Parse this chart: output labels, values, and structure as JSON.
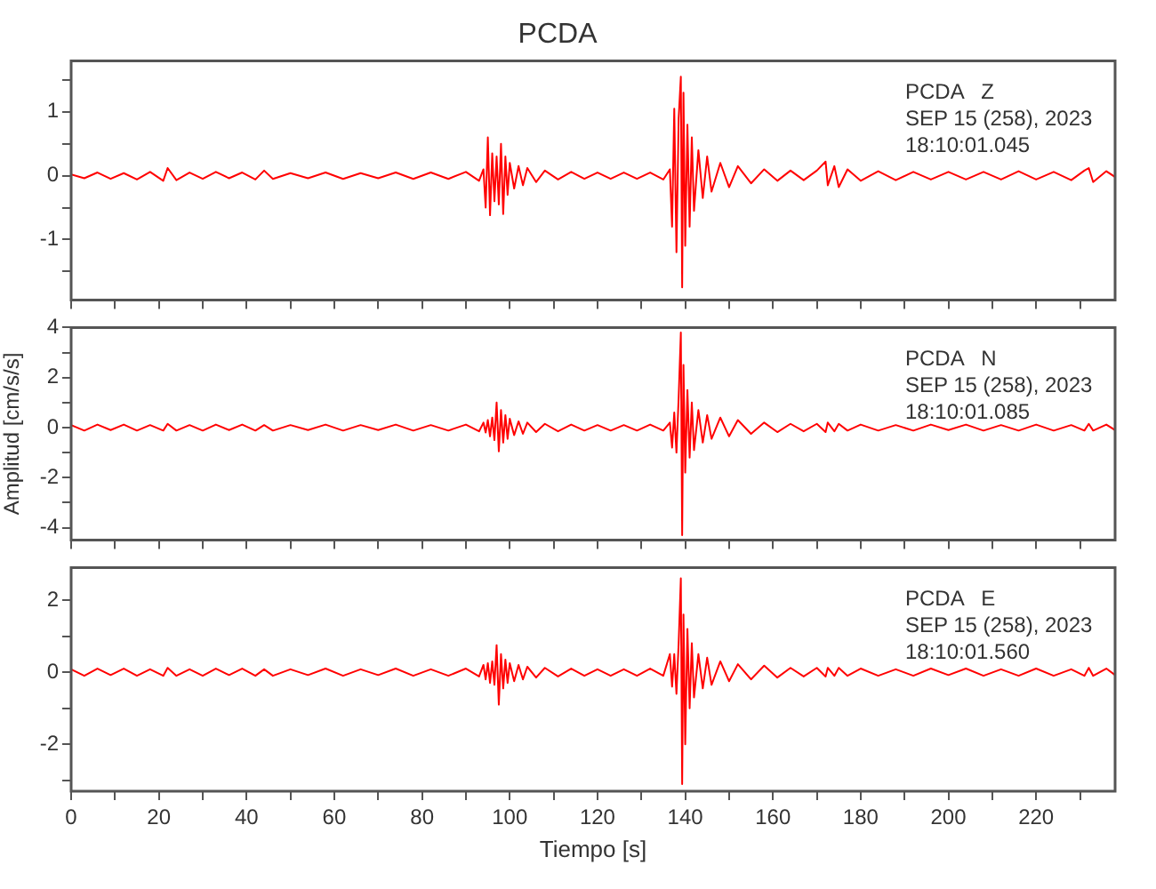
{
  "chart_data": [
    {
      "type": "line",
      "title": "PCDA",
      "annotations": [
        "PCDA   Z",
        "SEP 15 (258), 2023",
        "18:10:01.045"
      ],
      "tick_labels": "y",
      "xlim": [
        0,
        238
      ],
      "xticks": [
        0,
        {
          "value": 10,
          "label": null
        },
        20,
        {
          "value": 30,
          "label": null
        },
        40,
        {
          "value": 50,
          "label": null
        },
        60,
        {
          "value": 70,
          "label": null
        },
        80,
        {
          "value": 90,
          "label": null
        },
        100,
        {
          "value": 110,
          "label": null
        },
        120,
        {
          "value": 130,
          "label": null
        },
        140,
        {
          "value": 150,
          "label": null
        },
        160,
        {
          "value": 170,
          "label": null
        },
        180,
        {
          "value": 190,
          "label": null
        },
        200,
        {
          "value": 210,
          "label": null
        },
        220,
        {
          "value": 230,
          "label": null
        }
      ],
      "ylim": [
        -1.95,
        1.8
      ],
      "yticks": [
        {
          "value": -1.5,
          "label": null
        },
        -1,
        {
          "value": -0.5,
          "label": null
        },
        0,
        {
          "value": 0.5,
          "label": null
        },
        1,
        {
          "value": 1.5,
          "label": null
        }
      ],
      "x": [
        0,
        3,
        6,
        9,
        12,
        15,
        18,
        21,
        22,
        24,
        27,
        30,
        33,
        36,
        39,
        42,
        44,
        46,
        50,
        54,
        58,
        62,
        66,
        70,
        74,
        78,
        82,
        86,
        90,
        93,
        94,
        94.5,
        95,
        95.5,
        96,
        96.5,
        97,
        97.5,
        98,
        98.5,
        99,
        99.5,
        100,
        101,
        102,
        103,
        104,
        106,
        108,
        111,
        114,
        117,
        120,
        123,
        126,
        129,
        132,
        135,
        136.5,
        137,
        137.5,
        138,
        138.5,
        139,
        139.3,
        139.6,
        140,
        140.5,
        141,
        141.5,
        142,
        143,
        144,
        145,
        146,
        148,
        150,
        152,
        155,
        158,
        161,
        164,
        167,
        170,
        172,
        172.5,
        174,
        175,
        177,
        180,
        184,
        188,
        192,
        196,
        200,
        204,
        208,
        212,
        216,
        220,
        224,
        228,
        231,
        232,
        233,
        236,
        238
      ],
      "series": [
        {
          "color": "#ff0000",
          "values": [
            0.02,
            -0.04,
            0.05,
            -0.05,
            0.04,
            -0.06,
            0.06,
            -0.08,
            0.12,
            -0.07,
            0.05,
            -0.05,
            0.06,
            -0.04,
            0.05,
            -0.06,
            0.08,
            -0.05,
            0.04,
            -0.04,
            0.05,
            -0.05,
            0.04,
            -0.04,
            0.05,
            -0.05,
            0.05,
            -0.05,
            0.06,
            -0.08,
            0.1,
            -0.5,
            0.6,
            -0.62,
            0.35,
            -0.4,
            0.3,
            -0.45,
            0.5,
            -0.6,
            0.3,
            -0.3,
            0.2,
            -0.2,
            0.15,
            -0.15,
            0.12,
            -0.1,
            0.08,
            -0.06,
            0.06,
            -0.05,
            0.05,
            -0.05,
            0.05,
            -0.05,
            0.05,
            -0.06,
            0.1,
            -0.8,
            1.05,
            -1.2,
            0.9,
            1.55,
            -1.75,
            1.3,
            -1.1,
            0.8,
            -0.8,
            0.6,
            -0.55,
            0.4,
            -0.35,
            0.3,
            -0.25,
            0.2,
            -0.18,
            0.15,
            -0.12,
            0.1,
            -0.08,
            0.08,
            -0.07,
            0.08,
            0.22,
            -0.15,
            0.15,
            -0.18,
            0.1,
            -0.08,
            0.07,
            -0.07,
            0.06,
            -0.06,
            0.06,
            -0.06,
            0.06,
            -0.06,
            0.07,
            -0.06,
            0.06,
            -0.07,
            0.08,
            0.12,
            -0.1,
            0.07,
            -0.02
          ]
        }
      ]
    },
    {
      "type": "line",
      "ylabel": "Amplitud [cm/s/s]",
      "annotations": [
        "PCDA   N",
        "SEP 15 (258), 2023",
        "18:10:01.085"
      ],
      "tick_labels": "y",
      "xlim": [
        0,
        238
      ],
      "xticks": [
        0,
        {
          "value": 10,
          "label": null
        },
        20,
        {
          "value": 30,
          "label": null
        },
        40,
        {
          "value": 50,
          "label": null
        },
        60,
        {
          "value": 70,
          "label": null
        },
        80,
        {
          "value": 90,
          "label": null
        },
        100,
        {
          "value": 110,
          "label": null
        },
        120,
        {
          "value": 130,
          "label": null
        },
        140,
        {
          "value": 150,
          "label": null
        },
        160,
        {
          "value": 170,
          "label": null
        },
        180,
        {
          "value": 190,
          "label": null
        },
        200,
        {
          "value": 210,
          "label": null
        },
        220,
        {
          "value": 230,
          "label": null
        }
      ],
      "ylim": [
        -4.5,
        4
      ],
      "yticks": [
        -4,
        {
          "value": -3,
          "label": null
        },
        -2,
        {
          "value": -1,
          "label": null
        },
        0,
        {
          "value": 1,
          "label": null
        },
        2,
        {
          "value": 3,
          "label": null
        },
        4
      ],
      "x": [
        0,
        3,
        6,
        9,
        12,
        15,
        18,
        21,
        22,
        24,
        27,
        30,
        33,
        36,
        39,
        42,
        44,
        46,
        50,
        54,
        58,
        62,
        66,
        70,
        74,
        78,
        82,
        86,
        90,
        93,
        94,
        94.5,
        95,
        95.5,
        96,
        96.5,
        97,
        97.5,
        98,
        98.5,
        99,
        99.5,
        100,
        101,
        102,
        103,
        104,
        106,
        108,
        111,
        114,
        117,
        120,
        123,
        126,
        129,
        132,
        135,
        136.5,
        137,
        137.5,
        138,
        138.5,
        139,
        139.3,
        139.6,
        140,
        140.5,
        141,
        141.5,
        142,
        143,
        144,
        145,
        146,
        148,
        150,
        152,
        155,
        158,
        161,
        164,
        167,
        170,
        172,
        172.5,
        174,
        175,
        177,
        180,
        184,
        188,
        192,
        196,
        200,
        204,
        208,
        212,
        216,
        220,
        224,
        228,
        231,
        232,
        233,
        236,
        238
      ],
      "series": [
        {
          "color": "#ff0000",
          "values": [
            0.1,
            -0.12,
            0.12,
            -0.1,
            0.12,
            -0.12,
            0.1,
            -0.12,
            0.15,
            -0.12,
            0.1,
            -0.12,
            0.12,
            -0.1,
            0.12,
            -0.12,
            0.1,
            -0.12,
            0.1,
            -0.1,
            0.12,
            -0.12,
            0.1,
            -0.1,
            0.12,
            -0.12,
            0.1,
            -0.12,
            0.12,
            -0.15,
            0.2,
            -0.2,
            0.3,
            -0.35,
            0.4,
            -0.5,
            1.0,
            -0.95,
            0.7,
            -0.6,
            0.5,
            -0.45,
            0.35,
            -0.3,
            0.25,
            -0.25,
            0.2,
            -0.18,
            0.15,
            -0.15,
            0.12,
            -0.12,
            0.1,
            -0.12,
            0.1,
            -0.12,
            0.12,
            -0.12,
            0.2,
            -0.8,
            0.6,
            -1.0,
            1.2,
            3.8,
            -4.3,
            2.5,
            -1.8,
            1.5,
            -1.2,
            1.0,
            -0.9,
            0.7,
            -0.6,
            0.5,
            -0.45,
            0.4,
            -0.35,
            0.3,
            -0.25,
            0.2,
            -0.18,
            0.15,
            -0.15,
            0.15,
            -0.18,
            0.2,
            -0.15,
            0.15,
            -0.12,
            0.12,
            -0.12,
            0.1,
            -0.12,
            0.12,
            -0.1,
            0.12,
            -0.12,
            0.1,
            -0.12,
            0.12,
            -0.12,
            0.1,
            -0.12,
            0.15,
            -0.12,
            0.12,
            -0.1
          ]
        }
      ]
    },
    {
      "type": "line",
      "xlabel": "Tiempo [s]",
      "annotations": [
        "PCDA   E",
        "SEP 15 (258), 2023",
        "18:10:01.560"
      ],
      "xlim": [
        0,
        238
      ],
      "xticks": [
        0,
        {
          "value": 10,
          "label": null
        },
        20,
        {
          "value": 30,
          "label": null
        },
        40,
        {
          "value": 50,
          "label": null
        },
        60,
        {
          "value": 70,
          "label": null
        },
        80,
        {
          "value": 90,
          "label": null
        },
        100,
        {
          "value": 110,
          "label": null
        },
        120,
        {
          "value": 130,
          "label": null
        },
        140,
        {
          "value": 150,
          "label": null
        },
        160,
        {
          "value": 170,
          "label": null
        },
        180,
        {
          "value": 190,
          "label": null
        },
        200,
        {
          "value": 210,
          "label": null
        },
        220,
        {
          "value": 230,
          "label": null
        }
      ],
      "ylim": [
        -3.3,
        2.9
      ],
      "yticks": [
        {
          "value": -3,
          "label": null
        },
        -2,
        {
          "value": -1,
          "label": null
        },
        0,
        {
          "value": 1,
          "label": null
        },
        2
      ],
      "x": [
        0,
        3,
        6,
        9,
        12,
        15,
        18,
        21,
        22,
        24,
        27,
        30,
        33,
        36,
        39,
        42,
        44,
        46,
        50,
        54,
        58,
        62,
        66,
        70,
        74,
        78,
        82,
        86,
        90,
        93,
        94,
        94.5,
        95,
        95.5,
        96,
        96.5,
        97,
        97.5,
        98,
        98.5,
        99,
        99.5,
        100,
        101,
        102,
        103,
        104,
        106,
        108,
        111,
        114,
        117,
        120,
        123,
        126,
        129,
        132,
        135,
        136.5,
        137,
        137.5,
        138,
        138.5,
        139,
        139.3,
        139.6,
        140,
        140.5,
        141,
        141.5,
        142,
        143,
        144,
        145,
        146,
        148,
        150,
        152,
        155,
        158,
        161,
        164,
        167,
        170,
        172,
        172.5,
        174,
        175,
        177,
        180,
        184,
        188,
        192,
        196,
        200,
        204,
        208,
        212,
        216,
        220,
        224,
        228,
        231,
        232,
        233,
        236,
        238
      ],
      "series": [
        {
          "color": "#ff0000",
          "values": [
            0.08,
            -0.1,
            0.1,
            -0.08,
            0.1,
            -0.1,
            0.08,
            -0.1,
            0.12,
            -0.1,
            0.08,
            -0.1,
            0.1,
            -0.08,
            0.1,
            -0.1,
            0.08,
            -0.1,
            0.08,
            -0.08,
            0.1,
            -0.1,
            0.08,
            -0.08,
            0.1,
            -0.1,
            0.08,
            -0.1,
            0.1,
            -0.12,
            0.2,
            -0.2,
            0.25,
            -0.3,
            0.3,
            -0.35,
            0.75,
            -0.9,
            0.5,
            -0.45,
            0.35,
            -0.3,
            0.25,
            -0.25,
            0.2,
            -0.2,
            0.15,
            -0.15,
            0.12,
            -0.12,
            0.1,
            -0.1,
            0.08,
            -0.1,
            0.08,
            -0.1,
            0.1,
            -0.1,
            0.5,
            -0.4,
            0.5,
            -0.6,
            0.8,
            2.6,
            -3.1,
            1.6,
            -2.0,
            1.2,
            -1.0,
            0.8,
            -0.7,
            0.5,
            -0.45,
            0.4,
            -0.35,
            0.3,
            -0.25,
            0.22,
            -0.2,
            0.18,
            -0.15,
            0.12,
            -0.12,
            0.12,
            -0.12,
            0.12,
            -0.1,
            0.12,
            -0.1,
            0.1,
            -0.1,
            0.08,
            -0.1,
            0.1,
            -0.08,
            0.1,
            -0.1,
            0.08,
            -0.1,
            0.1,
            -0.1,
            0.08,
            -0.1,
            0.12,
            -0.1,
            0.1,
            -0.08
          ]
        }
      ]
    }
  ]
}
